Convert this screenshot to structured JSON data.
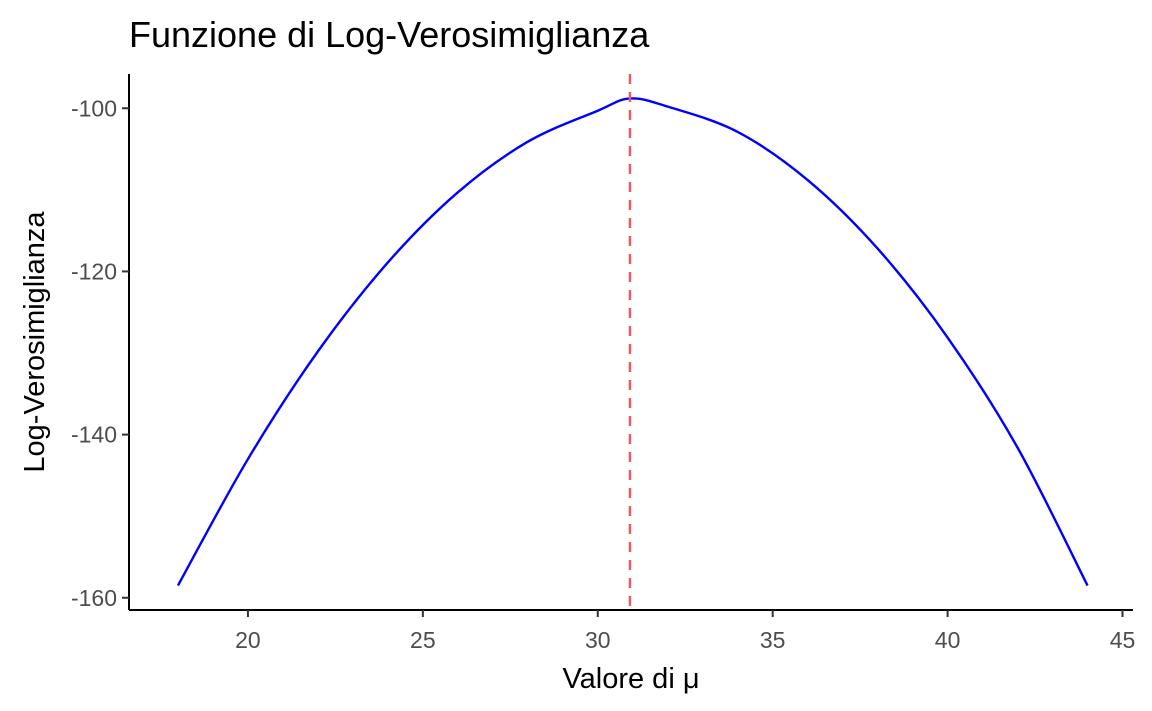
{
  "chart_data": {
    "type": "line",
    "title": "Funzione di Log-Verosimiglianza",
    "xlabel": "Valore di μ",
    "ylabel": "Log-Verosimiglianza",
    "xlim": [
      16.6,
      45.3
    ],
    "ylim": [
      -161.5,
      -95.8
    ],
    "x_ticks": [
      20,
      25,
      30,
      35,
      40,
      45
    ],
    "y_ticks": [
      -100,
      -120,
      -140,
      -160
    ],
    "series": [
      {
        "color": "#0000ff",
        "x": [
          18,
          20,
          22,
          24,
          26,
          28,
          30,
          30.92,
          32,
          34,
          36,
          38,
          40,
          42,
          44
        ],
        "y": [
          -158.5,
          -143.0,
          -129.8,
          -118.9,
          -110.3,
          -104.1,
          -100.3,
          -98.8,
          -99.8,
          -102.9,
          -108.8,
          -117.2,
          -128.1,
          -141.6,
          -158.5
        ]
      }
    ],
    "annotations": [
      {
        "type": "vline",
        "x": 30.92,
        "color": "#f8545a",
        "style": "dashed"
      }
    ],
    "grid": false,
    "legend": "none"
  }
}
